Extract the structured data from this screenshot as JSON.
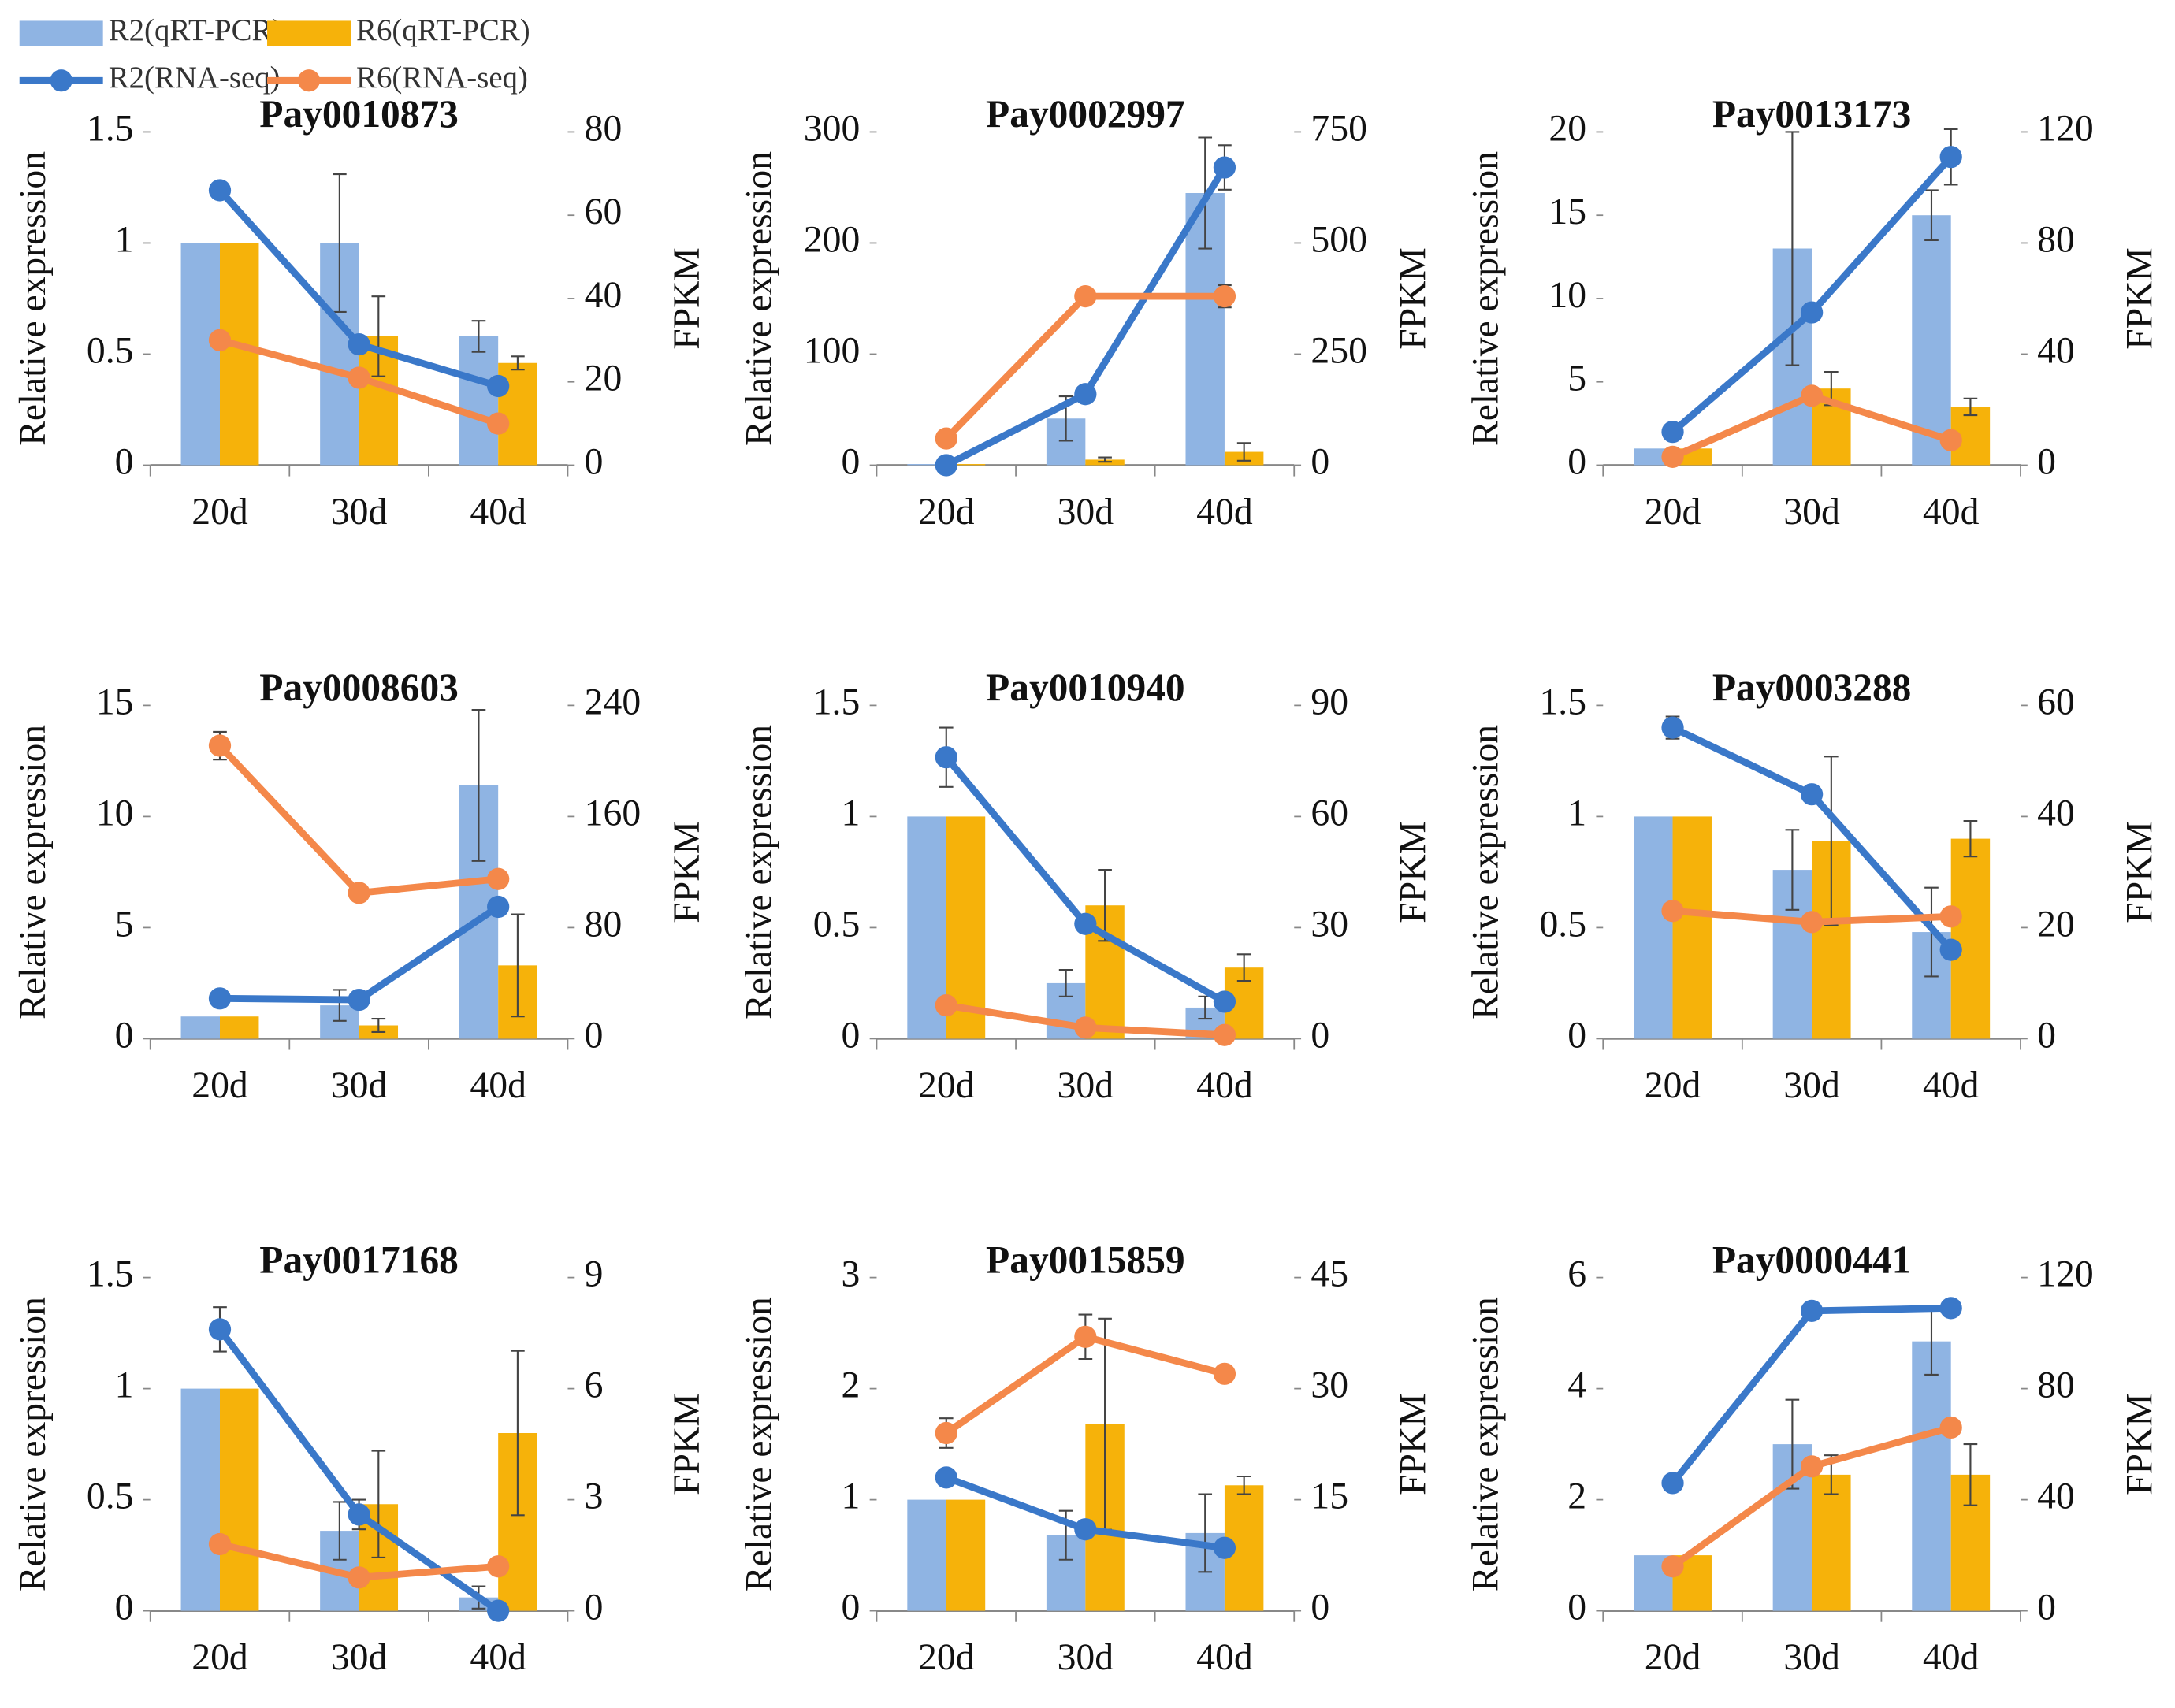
{
  "chart_data": [
    {
      "type": "bar",
      "title": "Pay0010873",
      "y_label": "Relative expression",
      "y2_label": "FPKM",
      "categories": [
        "20d",
        "30d",
        "40d"
      ],
      "ylim": [
        0,
        1.5
      ],
      "yticks": [
        0,
        0.5,
        1,
        1.5
      ],
      "y2lim": [
        0,
        80
      ],
      "y2ticks": [
        0,
        20,
        40,
        60,
        80
      ],
      "series": [
        {
          "name": "R2(qRT-PCR)",
          "type": "bar",
          "color": "#8fb4e3",
          "values": [
            1,
            1,
            0.58
          ],
          "errors": [
            0,
            0.31,
            0.07
          ]
        },
        {
          "name": "R6(qRT-PCR)",
          "type": "bar",
          "color": "#f6b20a",
          "values": [
            1,
            0.58,
            0.46
          ],
          "errors": [
            0,
            0.18,
            0.03
          ]
        },
        {
          "name": "R2(RNA-seq)",
          "type": "line",
          "axis": "y2",
          "color": "#3a78c9",
          "values": [
            66,
            29,
            19
          ],
          "errors": [
            0,
            0,
            0
          ]
        },
        {
          "name": "R6(RNA-seq)",
          "type": "line",
          "axis": "y2",
          "color": "#f4884a",
          "values": [
            30,
            21,
            10
          ],
          "errors": [
            0,
            0,
            0
          ]
        }
      ]
    },
    {
      "type": "bar",
      "title": "Pay0002997",
      "y_label": "Relative expression",
      "y2_label": "FPKM",
      "categories": [
        "20d",
        "30d",
        "40d"
      ],
      "ylim": [
        0,
        300
      ],
      "yticks": [
        0,
        100,
        200,
        300
      ],
      "y2lim": [
        0,
        750
      ],
      "y2ticks": [
        0,
        250,
        500,
        750
      ],
      "series": [
        {
          "type": "bar",
          "color": "#8fb4e3",
          "values": [
            1,
            42,
            245
          ],
          "errors": [
            0,
            20,
            50
          ]
        },
        {
          "type": "bar",
          "color": "#f6b20a",
          "values": [
            1,
            5,
            12
          ],
          "errors": [
            0,
            2,
            8
          ]
        },
        {
          "type": "line",
          "axis": "y2",
          "color": "#3a78c9",
          "values": [
            0,
            160,
            670
          ],
          "errors": [
            0,
            0,
            50
          ]
        },
        {
          "type": "line",
          "axis": "y2",
          "color": "#f4884a",
          "values": [
            60,
            380,
            380
          ],
          "errors": [
            0,
            0,
            25
          ]
        }
      ]
    },
    {
      "type": "bar",
      "title": "Pay0013173",
      "y_label": "Relative expression",
      "y2_label": "FPKM",
      "categories": [
        "20d",
        "30d",
        "40d"
      ],
      "ylim": [
        0,
        20
      ],
      "yticks": [
        0,
        5,
        10,
        15,
        20
      ],
      "y2lim": [
        0,
        120
      ],
      "y2ticks": [
        0,
        40,
        80,
        120
      ],
      "series": [
        {
          "type": "bar",
          "color": "#8fb4e3",
          "values": [
            1,
            13,
            15
          ],
          "errors": [
            0,
            7,
            1.5
          ]
        },
        {
          "type": "bar",
          "color": "#f6b20a",
          "values": [
            1,
            4.6,
            3.5
          ],
          "errors": [
            0,
            1,
            0.5
          ]
        },
        {
          "type": "line",
          "axis": "y2",
          "color": "#3a78c9",
          "values": [
            12,
            55,
            111
          ],
          "errors": [
            0,
            0,
            10
          ]
        },
        {
          "type": "line",
          "axis": "y2",
          "color": "#f4884a",
          "values": [
            3,
            25,
            9
          ],
          "errors": [
            0,
            0,
            0
          ]
        }
      ]
    },
    {
      "type": "bar",
      "title": "Pay0008603",
      "y_label": "Relative expression",
      "y2_label": "FPKM",
      "categories": [
        "20d",
        "30d",
        "40d"
      ],
      "ylim": [
        0,
        15
      ],
      "yticks": [
        0,
        5,
        10,
        15
      ],
      "y2lim": [
        0,
        240
      ],
      "y2ticks": [
        0,
        80,
        160,
        240
      ],
      "series": [
        {
          "type": "bar",
          "color": "#8fb4e3",
          "values": [
            1,
            1.5,
            11.4
          ],
          "errors": [
            0,
            0.7,
            3.4
          ]
        },
        {
          "type": "bar",
          "color": "#f6b20a",
          "values": [
            1,
            0.6,
            3.3
          ],
          "errors": [
            0,
            0.3,
            2.3
          ]
        },
        {
          "type": "line",
          "axis": "y2",
          "color": "#3a78c9",
          "values": [
            29,
            28,
            95
          ],
          "errors": [
            0,
            0,
            0
          ]
        },
        {
          "type": "line",
          "axis": "y2",
          "color": "#f4884a",
          "values": [
            211,
            105,
            115
          ],
          "errors": [
            10,
            5,
            0
          ]
        }
      ]
    },
    {
      "type": "bar",
      "title": "Pay0010940",
      "y_label": "Relative expression",
      "y2_label": "FPKM",
      "categories": [
        "20d",
        "30d",
        "40d"
      ],
      "ylim": [
        0,
        1.5
      ],
      "yticks": [
        0,
        0.5,
        1,
        1.5
      ],
      "y2lim": [
        0,
        90
      ],
      "y2ticks": [
        0,
        30,
        60,
        90
      ],
      "series": [
        {
          "type": "bar",
          "color": "#8fb4e3",
          "values": [
            1,
            0.25,
            0.14
          ],
          "errors": [
            0,
            0.06,
            0.05
          ]
        },
        {
          "type": "bar",
          "color": "#f6b20a",
          "values": [
            1,
            0.6,
            0.32
          ],
          "errors": [
            0,
            0.16,
            0.06
          ]
        },
        {
          "type": "line",
          "axis": "y2",
          "color": "#3a78c9",
          "values": [
            76,
            31,
            10
          ],
          "errors": [
            8,
            0,
            0
          ]
        },
        {
          "type": "line",
          "axis": "y2",
          "color": "#f4884a",
          "values": [
            9,
            3,
            1
          ],
          "errors": [
            0,
            0,
            0
          ]
        }
      ]
    },
    {
      "type": "bar",
      "title": "Pay0003288",
      "y_label": "Relative expression",
      "y2_label": "FPKM",
      "categories": [
        "20d",
        "30d",
        "40d"
      ],
      "ylim": [
        0,
        1.5
      ],
      "yticks": [
        0,
        0.5,
        1,
        1.5
      ],
      "y2lim": [
        0,
        60
      ],
      "y2ticks": [
        0,
        20,
        40,
        60
      ],
      "series": [
        {
          "type": "bar",
          "color": "#8fb4e3",
          "values": [
            1,
            0.76,
            0.48
          ],
          "errors": [
            0,
            0.18,
            0.2
          ]
        },
        {
          "type": "bar",
          "color": "#f6b20a",
          "values": [
            1,
            0.89,
            0.9
          ],
          "errors": [
            0,
            0.38,
            0.08
          ]
        },
        {
          "type": "line",
          "axis": "y2",
          "color": "#3a78c9",
          "values": [
            56,
            44,
            16
          ],
          "errors": [
            2,
            0,
            0
          ]
        },
        {
          "type": "line",
          "axis": "y2",
          "color": "#f4884a",
          "values": [
            23,
            21,
            22
          ],
          "errors": [
            0,
            0,
            0
          ]
        }
      ]
    },
    {
      "type": "bar",
      "title": "Pay0017168",
      "y_label": "Relative expression",
      "y2_label": "FPKM",
      "categories": [
        "20d",
        "30d",
        "40d"
      ],
      "ylim": [
        0,
        1.5
      ],
      "yticks": [
        0,
        0.5,
        1,
        1.5
      ],
      "y2lim": [
        0,
        9
      ],
      "y2ticks": [
        0,
        3,
        6,
        9
      ],
      "series": [
        {
          "type": "bar",
          "color": "#8fb4e3",
          "values": [
            1,
            0.36,
            0.06
          ],
          "errors": [
            0,
            0.13,
            0.05
          ]
        },
        {
          "type": "bar",
          "color": "#f6b20a",
          "values": [
            1,
            0.48,
            0.8
          ],
          "errors": [
            0,
            0.24,
            0.37
          ]
        },
        {
          "type": "line",
          "axis": "y2",
          "color": "#3a78c9",
          "values": [
            7.6,
            2.6,
            0
          ],
          "errors": [
            0.6,
            0.4,
            0
          ]
        },
        {
          "type": "line",
          "axis": "y2",
          "color": "#f4884a",
          "values": [
            1.8,
            0.9,
            1.2
          ],
          "errors": [
            0,
            0,
            0
          ]
        }
      ]
    },
    {
      "type": "bar",
      "title": "Pay0015859",
      "y_label": "Relative expression",
      "y2_label": "FPKM",
      "categories": [
        "20d",
        "30d",
        "40d"
      ],
      "ylim": [
        0,
        3
      ],
      "yticks": [
        0,
        1,
        2,
        3
      ],
      "y2lim": [
        0,
        45
      ],
      "y2ticks": [
        0,
        15,
        30,
        45
      ],
      "series": [
        {
          "type": "bar",
          "color": "#8fb4e3",
          "values": [
            1,
            0.68,
            0.7
          ],
          "errors": [
            0,
            0.22,
            0.35
          ]
        },
        {
          "type": "bar",
          "color": "#f6b20a",
          "values": [
            1,
            1.68,
            1.13
          ],
          "errors": [
            0,
            0.95,
            0.08
          ]
        },
        {
          "type": "line",
          "axis": "y2",
          "color": "#3a78c9",
          "values": [
            18,
            11,
            8.5
          ],
          "errors": [
            0,
            0,
            0
          ]
        },
        {
          "type": "line",
          "axis": "y2",
          "color": "#f4884a",
          "values": [
            24,
            37,
            32
          ],
          "errors": [
            2,
            3,
            0
          ]
        }
      ]
    },
    {
      "type": "bar",
      "title": "Pay0000441",
      "y_label": "Relative expression",
      "y2_label": "FPKM",
      "categories": [
        "20d",
        "30d",
        "40d"
      ],
      "ylim": [
        0,
        6
      ],
      "yticks": [
        0,
        2,
        4,
        6
      ],
      "y2lim": [
        0,
        120
      ],
      "y2ticks": [
        0,
        40,
        80,
        120
      ],
      "series": [
        {
          "type": "bar",
          "color": "#8fb4e3",
          "values": [
            1,
            3,
            4.85
          ],
          "errors": [
            0,
            0.8,
            0.6
          ]
        },
        {
          "type": "bar",
          "color": "#f6b20a",
          "values": [
            1,
            2.45,
            2.45
          ],
          "errors": [
            0,
            0.35,
            0.55
          ]
        },
        {
          "type": "line",
          "axis": "y2",
          "color": "#3a78c9",
          "values": [
            46,
            108,
            109
          ],
          "errors": [
            0,
            0,
            0
          ]
        },
        {
          "type": "line",
          "axis": "y2",
          "color": "#f4884a",
          "values": [
            16,
            52,
            66
          ],
          "errors": [
            0,
            0,
            0
          ]
        }
      ]
    }
  ]
}
